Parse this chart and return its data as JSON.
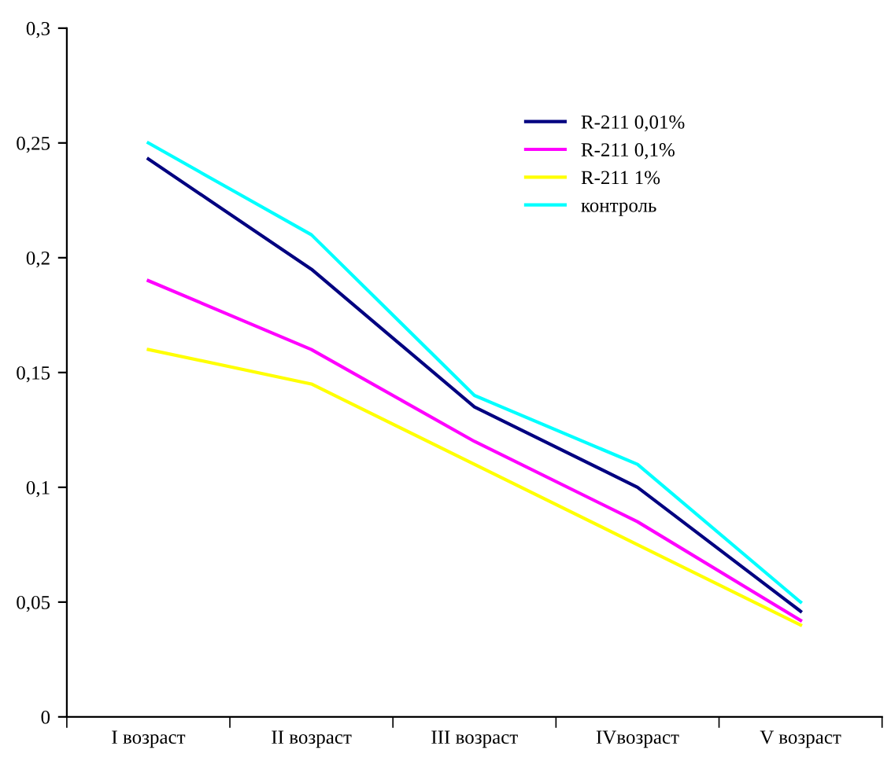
{
  "chart_data": {
    "type": "line",
    "categories": [
      "I возраст",
      "II возраст",
      "III возраст",
      "IVвозраст",
      "V возраст"
    ],
    "series": [
      {
        "name": "R-211 0,01%",
        "color": "#000080",
        "values": [
          0.243,
          0.195,
          0.135,
          0.1,
          0.046
        ]
      },
      {
        "name": "R-211 0,1%",
        "color": "#ff00ff",
        "values": [
          0.19,
          0.16,
          0.12,
          0.085,
          0.042
        ]
      },
      {
        "name": "R-211 1%",
        "color": "#ffff00",
        "values": [
          0.16,
          0.145,
          0.11,
          0.075,
          0.04
        ]
      },
      {
        "name": "контроль",
        "color": "#00ffff",
        "values": [
          0.25,
          0.21,
          0.14,
          0.11,
          0.05
        ]
      }
    ],
    "ylim": [
      0,
      0.3
    ],
    "yticks": [
      0,
      {
        "value": 0.05,
        "label": "0,05"
      },
      {
        "value": 0.1,
        "label": "0,1"
      },
      {
        "value": 0.15,
        "label": "0,15"
      },
      {
        "value": 0.2,
        "label": "0,2"
      },
      {
        "value": 0.25,
        "label": "0,25"
      },
      {
        "value": 0.3,
        "label": "0,3"
      }
    ],
    "grid": false,
    "legend": "top right",
    "marker": "none",
    "line_style": "solid"
  }
}
